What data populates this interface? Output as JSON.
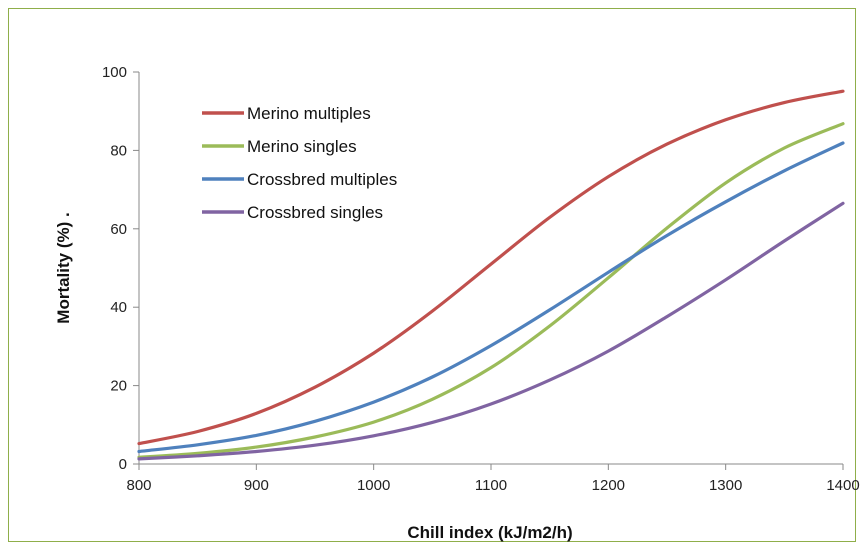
{
  "chart_data": {
    "type": "line",
    "xlabel": "Chill index (kJ/m2/h)",
    "ylabel": "Mortality (%) .",
    "xlim": [
      800,
      1400
    ],
    "ylim": [
      0,
      100
    ],
    "x_ticks": [
      800,
      900,
      1000,
      1100,
      1200,
      1300,
      1400
    ],
    "y_ticks": [
      0,
      20,
      40,
      60,
      80,
      100
    ],
    "grid": false,
    "legend_position": "top-left",
    "x": [
      800,
      850,
      900,
      950,
      1000,
      1050,
      1100,
      1150,
      1200,
      1250,
      1300,
      1350,
      1400
    ],
    "series": [
      {
        "name": "Merino multiples",
        "color": "#c0504d",
        "values": [
          5.2,
          8.3,
          12.9,
          19.6,
          28.3,
          39.0,
          51.0,
          62.9,
          73.3,
          81.6,
          87.8,
          92.2,
          95.1
        ]
      },
      {
        "name": "Merino singles",
        "color": "#9bbb59",
        "values": [
          1.7,
          2.7,
          4.3,
          6.9,
          10.7,
          16.5,
          24.6,
          35.2,
          47.5,
          60.2,
          71.7,
          80.6,
          86.8
        ]
      },
      {
        "name": "Crossbred multiples",
        "color": "#4f81bd",
        "values": [
          3.2,
          4.9,
          7.3,
          10.9,
          15.8,
          22.2,
          30.2,
          39.3,
          48.9,
          58.3,
          66.9,
          74.8,
          81.9
        ]
      },
      {
        "name": "Crossbred singles",
        "color": "#8064a2",
        "values": [
          1.3,
          2.1,
          3.2,
          4.8,
          7.2,
          10.6,
          15.3,
          21.4,
          28.8,
          37.6,
          47.0,
          56.9,
          66.5
        ]
      }
    ]
  }
}
